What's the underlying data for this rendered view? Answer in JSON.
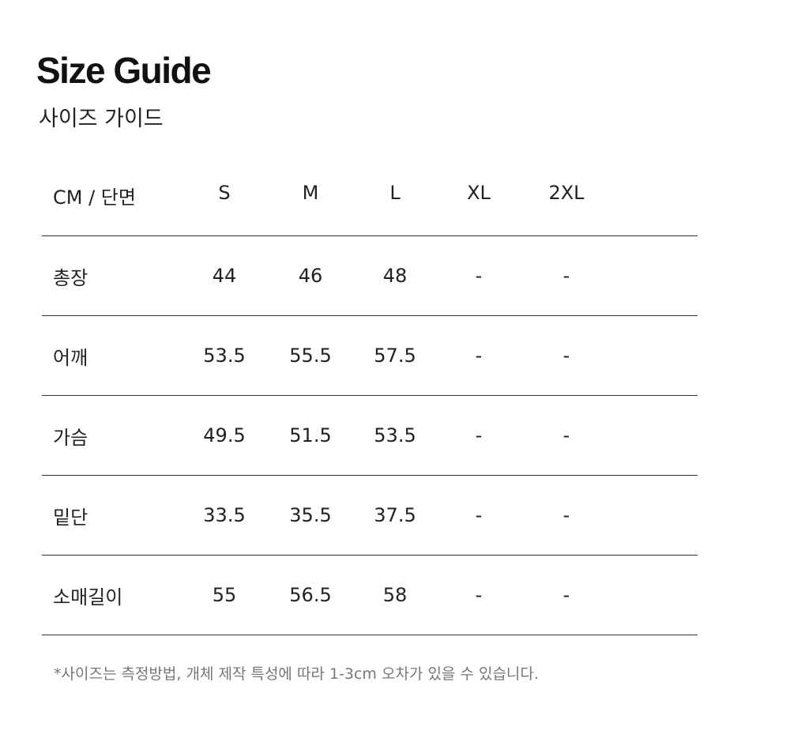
{
  "title": "Size Guide",
  "subtitle": "사이즈 가이드",
  "table": {
    "header_label": "CM / 단면",
    "columns": [
      "S",
      "M",
      "L",
      "XL",
      "2XL"
    ],
    "rows": [
      {
        "label": "총장",
        "values": [
          "44",
          "46",
          "48",
          "-",
          "-"
        ]
      },
      {
        "label": "어깨",
        "values": [
          "53.5",
          "55.5",
          "57.5",
          "-",
          "-"
        ]
      },
      {
        "label": "가슴",
        "values": [
          "49.5",
          "51.5",
          "53.5",
          "-",
          "-"
        ]
      },
      {
        "label": "밑단",
        "values": [
          "33.5",
          "35.5",
          "37.5",
          "-",
          "-"
        ]
      },
      {
        "label": "소매길이",
        "values": [
          "55",
          "56.5",
          "58",
          "-",
          "-"
        ]
      }
    ]
  },
  "note": "*사이즈는 측정방법, 개체 제작 특성에 따라 1-3cm 오차가 있을 수 있습니다."
}
